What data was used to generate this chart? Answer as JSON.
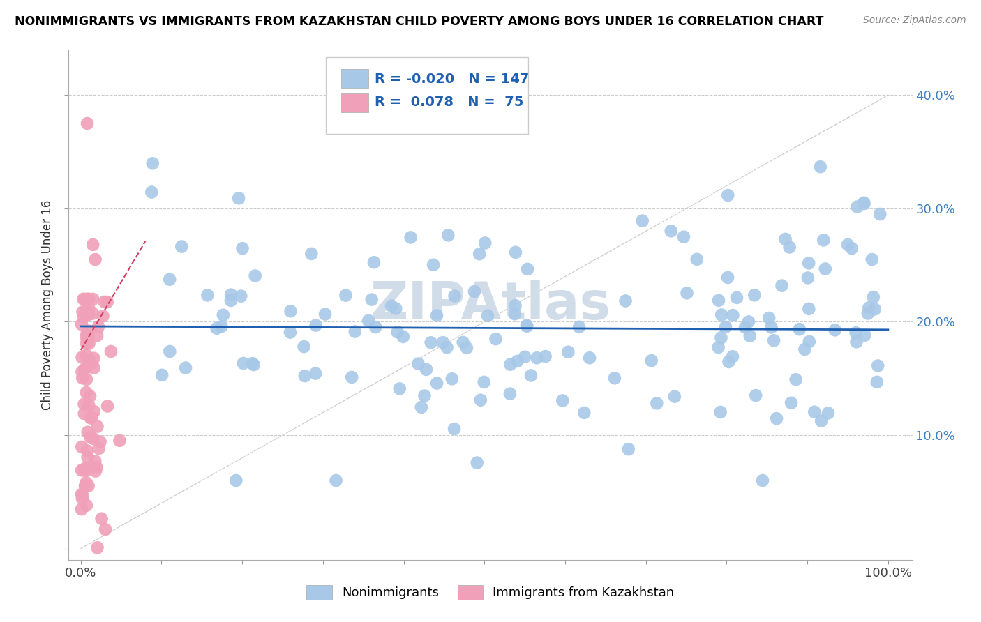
{
  "title": "NONIMMIGRANTS VS IMMIGRANTS FROM KAZAKHSTAN CHILD POVERTY AMONG BOYS UNDER 16 CORRELATION CHART",
  "source": "Source: ZipAtlas.com",
  "ylabel": "Child Poverty Among Boys Under 16",
  "legend_R_blue": "-0.020",
  "legend_N_blue": "147",
  "legend_R_pink": "0.078",
  "legend_N_pink": "75",
  "blue_color": "#a8c8e8",
  "pink_color": "#f0a0b8",
  "trend_blue_color": "#2060b0",
  "trend_pink_color": "#d04060",
  "grid_color": "#cccccc",
  "diag_color": "#cccccc",
  "watermark_color": "#d0dce8",
  "title_color": "#000000",
  "source_color": "#888888",
  "label_color": "#4080c0",
  "marker_size": 180
}
